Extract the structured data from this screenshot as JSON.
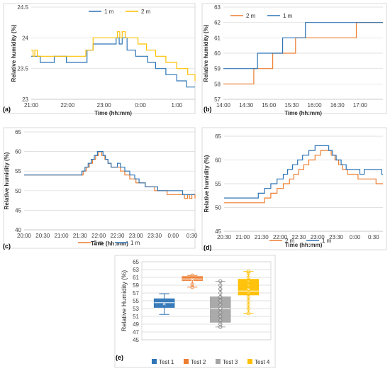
{
  "figure": {
    "colors": {
      "m1": "#2e75b6",
      "m2": "#ffc000",
      "m2_orange": "#ed7d31",
      "test1": "#2e75b6",
      "test2": "#ed7d31",
      "test3": "#a5a5a5",
      "test4": "#ffc000",
      "grid": "#d9d9d9"
    }
  },
  "chart_data": [
    {
      "panel": "(a)",
      "type": "line",
      "xlabel": "Time (hh:mm)",
      "ylabel": "Relative humidity (%)",
      "xlim": [
        0,
        270
      ],
      "ylim": [
        23,
        24.5
      ],
      "x_ticks": [
        0,
        60,
        120,
        180,
        240
      ],
      "x_tick_labels": [
        "21:00",
        "22:00",
        "23:00",
        "0:00",
        "1:00"
      ],
      "y_ticks": [
        23,
        23.5,
        24,
        24.5
      ],
      "y_tick_labels": [
        "23",
        "23.5",
        "24",
        "24.5"
      ],
      "legend": [
        "1 m",
        "2 m"
      ],
      "legend_position": "top",
      "series": [
        {
          "name": "1 m",
          "color": "#2e75b6",
          "points": [
            [
              0,
              23.7
            ],
            [
              8,
              23.7
            ],
            [
              15,
              23.6
            ],
            [
              28,
              23.6
            ],
            [
              38,
              23.7
            ],
            [
              58,
              23.6
            ],
            [
              78,
              23.6
            ],
            [
              92,
              23.8
            ],
            [
              102,
              23.9
            ],
            [
              120,
              23.9
            ],
            [
              138,
              23.9
            ],
            [
              140,
              24.0
            ],
            [
              145,
              23.9
            ],
            [
              150,
              24.0
            ],
            [
              158,
              23.8
            ],
            [
              166,
              23.8
            ],
            [
              172,
              23.7
            ],
            [
              182,
              23.7
            ],
            [
              192,
              23.6
            ],
            [
              205,
              23.5
            ],
            [
              222,
              23.4
            ],
            [
              240,
              23.3
            ],
            [
              256,
              23.2
            ],
            [
              270,
              23.2
            ]
          ]
        },
        {
          "name": "2 m",
          "color": "#ffc000",
          "points": [
            [
              0,
              23.8
            ],
            [
              3,
              23.7
            ],
            [
              6,
              23.8
            ],
            [
              10,
              23.7
            ],
            [
              40,
              23.7
            ],
            [
              60,
              23.7
            ],
            [
              78,
              23.7
            ],
            [
              90,
              23.8
            ],
            [
              102,
              24.0
            ],
            [
              120,
              24.0
            ],
            [
              138,
              24.0
            ],
            [
              142,
              24.1
            ],
            [
              146,
              24.0
            ],
            [
              150,
              24.1
            ],
            [
              155,
              24.0
            ],
            [
              168,
              24.0
            ],
            [
              176,
              23.9
            ],
            [
              190,
              23.8
            ],
            [
              205,
              23.7
            ],
            [
              222,
              23.6
            ],
            [
              240,
              23.5
            ],
            [
              258,
              23.4
            ],
            [
              270,
              23.3
            ]
          ]
        }
      ]
    },
    {
      "panel": "(b)",
      "type": "line",
      "xlabel": "Time (hh:mm)",
      "ylabel": "Relative humidity (%)",
      "xlim": [
        0,
        210
      ],
      "ylim": [
        57,
        63
      ],
      "x_ticks": [
        0,
        30,
        60,
        90,
        120,
        150,
        180
      ],
      "x_tick_labels": [
        "14:00",
        "14:30",
        "15:00",
        "15:30",
        "16:00",
        "16:30",
        "17:00"
      ],
      "y_ticks": [
        57,
        58,
        59,
        60,
        61,
        62,
        63
      ],
      "y_tick_labels": [
        "57",
        "58",
        "59",
        "60",
        "61",
        "62",
        "63"
      ],
      "legend": [
        "2 m",
        "1 m"
      ],
      "legend_position": "top",
      "series": [
        {
          "name": "2 m",
          "color": "#ed7d31",
          "points": [
            [
              0,
              58
            ],
            [
              40,
              58
            ],
            [
              40,
              59
            ],
            [
              65,
              59
            ],
            [
              65,
              60
            ],
            [
              95,
              60
            ],
            [
              95,
              61
            ],
            [
              175,
              61
            ],
            [
              175,
              62
            ],
            [
              210,
              62
            ]
          ]
        },
        {
          "name": "1 m",
          "color": "#2e75b6",
          "points": [
            [
              0,
              59
            ],
            [
              45,
              59
            ],
            [
              45,
              60
            ],
            [
              78,
              60
            ],
            [
              78,
              61
            ],
            [
              108,
              61
            ],
            [
              108,
              62
            ],
            [
              210,
              62
            ]
          ]
        }
      ]
    },
    {
      "panel": "(c)",
      "type": "line",
      "xlabel": "Time (hh:mm)",
      "ylabel": "Relative humidity (%)",
      "xlim": [
        0,
        275
      ],
      "ylim": [
        40,
        65
      ],
      "x_ticks": [
        0,
        30,
        60,
        90,
        120,
        150,
        180,
        210,
        240,
        270
      ],
      "x_tick_labels": [
        "20:00",
        "20:30",
        "21:00",
        "21:30",
        "22:00",
        "22:30",
        "23:00",
        "23:30",
        "0:00",
        "0:30"
      ],
      "y_ticks": [
        40,
        45,
        50,
        55,
        60,
        65
      ],
      "y_tick_labels": [
        "40",
        "45",
        "50",
        "55",
        "60",
        "65"
      ],
      "legend": [
        "2 m",
        "1 m"
      ],
      "legend_position": "bottom",
      "series": [
        {
          "name": "2 m",
          "color": "#ed7d31",
          "points": [
            [
              0,
              54
            ],
            [
              90,
              54
            ],
            [
              95,
              55
            ],
            [
              100,
              56
            ],
            [
              105,
              57
            ],
            [
              110,
              58
            ],
            [
              115,
              59
            ],
            [
              120,
              60
            ],
            [
              125,
              59
            ],
            [
              130,
              58
            ],
            [
              135,
              57
            ],
            [
              140,
              56
            ],
            [
              148,
              56
            ],
            [
              155,
              55
            ],
            [
              162,
              54
            ],
            [
              170,
              53
            ],
            [
              180,
              52
            ],
            [
              195,
              51
            ],
            [
              210,
              50
            ],
            [
              230,
              49
            ],
            [
              250,
              49
            ],
            [
              258,
              48
            ],
            [
              263,
              49
            ],
            [
              266,
              48
            ],
            [
              270,
              49
            ],
            [
              275,
              48
            ]
          ]
        },
        {
          "name": "1 m",
          "color": "#2e75b6",
          "points": [
            [
              0,
              54
            ],
            [
              88,
              54
            ],
            [
              93,
              55
            ],
            [
              98,
              56
            ],
            [
              103,
              57
            ],
            [
              108,
              58
            ],
            [
              113,
              59
            ],
            [
              118,
              60
            ],
            [
              123,
              60
            ],
            [
              127,
              59
            ],
            [
              131,
              58
            ],
            [
              135,
              57
            ],
            [
              140,
              56
            ],
            [
              150,
              57
            ],
            [
              155,
              56
            ],
            [
              162,
              55
            ],
            [
              170,
              54
            ],
            [
              178,
              53
            ],
            [
              185,
              52
            ],
            [
              195,
              51
            ],
            [
              205,
              51
            ],
            [
              215,
              50
            ],
            [
              240,
              50
            ],
            [
              255,
              49
            ],
            [
              275,
              49
            ]
          ]
        }
      ]
    },
    {
      "panel": "(d)",
      "type": "line",
      "xlabel": "Time (hh:mm)",
      "ylabel": "Relative humidity (%)",
      "xlim": [
        0,
        255
      ],
      "ylim": [
        45,
        65
      ],
      "x_ticks": [
        0,
        30,
        60,
        90,
        120,
        150,
        180,
        210,
        240
      ],
      "x_tick_labels": [
        "20:30",
        "21:00",
        "21:30",
        "22:00",
        "22:30",
        "23:00",
        "23:30",
        "0:00",
        "0:30"
      ],
      "y_ticks": [
        45,
        50,
        55,
        60,
        65
      ],
      "y_tick_labels": [
        "45",
        "50",
        "55",
        "60",
        "65"
      ],
      "legend": [
        "2 m",
        "1 m"
      ],
      "legend_position": "bottom",
      "series": [
        {
          "name": "2 m",
          "color": "#ed7d31",
          "points": [
            [
              0,
              51
            ],
            [
              58,
              51
            ],
            [
              65,
              52
            ],
            [
              75,
              53
            ],
            [
              85,
              54
            ],
            [
              95,
              55
            ],
            [
              105,
              56
            ],
            [
              112,
              57
            ],
            [
              120,
              58
            ],
            [
              128,
              59
            ],
            [
              136,
              60
            ],
            [
              146,
              61
            ],
            [
              155,
              62
            ],
            [
              165,
              62
            ],
            [
              172,
              61
            ],
            [
              178,
              60
            ],
            [
              184,
              59
            ],
            [
              190,
              58
            ],
            [
              198,
              57
            ],
            [
              215,
              56
            ],
            [
              240,
              56
            ],
            [
              244,
              55
            ],
            [
              255,
              55
            ]
          ]
        },
        {
          "name": "1 m",
          "color": "#2e75b6",
          "points": [
            [
              0,
              52
            ],
            [
              50,
              52
            ],
            [
              55,
              53
            ],
            [
              65,
              54
            ],
            [
              75,
              55
            ],
            [
              85,
              56
            ],
            [
              95,
              57
            ],
            [
              102,
              58
            ],
            [
              110,
              59
            ],
            [
              118,
              60
            ],
            [
              126,
              61
            ],
            [
              136,
              62
            ],
            [
              146,
              63
            ],
            [
              162,
              63
            ],
            [
              168,
              62
            ],
            [
              174,
              61
            ],
            [
              180,
              60
            ],
            [
              188,
              59
            ],
            [
              196,
              58
            ],
            [
              215,
              58
            ],
            [
              218,
              57
            ],
            [
              225,
              58
            ],
            [
              240,
              58
            ],
            [
              250,
              58
            ],
            [
              253,
              57
            ],
            [
              255,
              57
            ]
          ]
        }
      ]
    },
    {
      "panel": "(e)",
      "type": "box",
      "ylabel": "Relative Humidity (%)",
      "ylim": [
        45,
        65
      ],
      "y_ticks": [
        45,
        47,
        49,
        51,
        53,
        55,
        57,
        59,
        61,
        63,
        65
      ],
      "y_tick_labels": [
        "45",
        "47",
        "49",
        "51",
        "53",
        "55",
        "57",
        "59",
        "61",
        "63",
        "65"
      ],
      "legend": [
        "Test 1",
        "Test 2",
        "Test 3",
        "Test 4"
      ],
      "legend_position": "bottom",
      "boxes": [
        {
          "name": "Test 1",
          "color": "#2e75b6",
          "min": 51.5,
          "q1": 53.3,
          "median": 54.5,
          "q3": 55.5,
          "max": 56.8,
          "mean": 54.2,
          "points": []
        },
        {
          "name": "Test 2",
          "color": "#ed7d31",
          "min": 58.5,
          "q1": 60.2,
          "median": 60.6,
          "q3": 61.2,
          "max": 61.5,
          "mean": 60.5,
          "points": [
            58.5,
            59.2,
            61.5
          ]
        },
        {
          "name": "Test 3",
          "color": "#a5a5a5",
          "min": 48.3,
          "q1": 49.5,
          "median": 53.0,
          "q3": 56.0,
          "max": 60.0,
          "mean": 53.2,
          "points": [
            48.3,
            49,
            50,
            51,
            52,
            53,
            54,
            55,
            56,
            57,
            58,
            59,
            60
          ]
        },
        {
          "name": "Test 4",
          "color": "#ffc000",
          "min": 51.8,
          "q1": 56.5,
          "median": 57.5,
          "q3": 60.5,
          "max": 62.5,
          "mean": 57.8,
          "points": [
            51.8,
            53,
            54,
            55,
            56,
            57,
            58,
            59,
            60,
            61,
            62,
            62.5
          ]
        }
      ]
    }
  ]
}
